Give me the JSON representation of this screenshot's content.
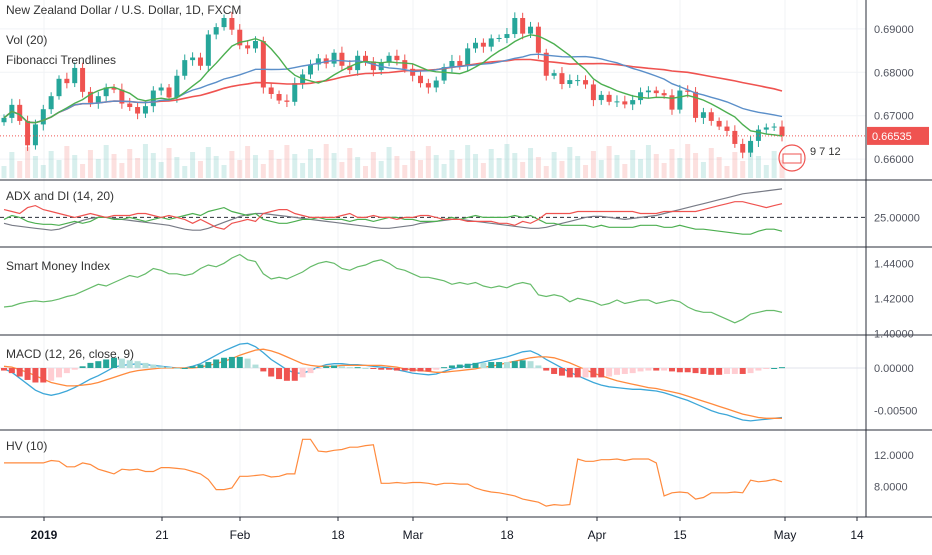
{
  "header": {
    "symbol_title": "New Zealand Dollar / U.S. Dollar, 1D, FXCM",
    "volume_label": "Vol (20)",
    "fib_label": "Fibonacci Trendlines"
  },
  "last_price_label": "0.66535",
  "event_badge_text": "9 7 12",
  "colors": {
    "up": "#26a69a",
    "down": "#ef5350",
    "ma_fast": "#4caf50",
    "ma_mid": "#5b8fc9",
    "ma_slow": "#ef5350",
    "adx": "#787b86",
    "plus_di": "#4caf50",
    "minus_di": "#ef5350",
    "smi": "#66bb6a",
    "macd": "#3da7d8",
    "signal": "#ff8a3d",
    "hv": "#ff8a3d",
    "price_line": "#ef5350"
  },
  "chart_data": [
    {
      "type": "candlestick",
      "title": "New Zealand Dollar / U.S. Dollar, 1D, FXCM",
      "ylim": [
        0.655,
        0.695
      ],
      "yticks": [
        "0.69000",
        "0.68000",
        "0.67000",
        "0.66000"
      ],
      "x_labels": [
        "2019",
        "21",
        "Feb",
        "18",
        "Mar",
        "18",
        "Apr",
        "15",
        "May",
        "14"
      ],
      "close": [
        0.6695,
        0.6725,
        0.6688,
        0.6632,
        0.668,
        0.6715,
        0.6745,
        0.6785,
        0.6775,
        0.681,
        0.6755,
        0.673,
        0.6745,
        0.6765,
        0.676,
        0.6728,
        0.672,
        0.6705,
        0.6722,
        0.6758,
        0.6765,
        0.6742,
        0.6792,
        0.6828,
        0.6834,
        0.6815,
        0.6887,
        0.6904,
        0.6925,
        0.6898,
        0.6862,
        0.6855,
        0.6872,
        0.6765,
        0.675,
        0.6735,
        0.6732,
        0.6775,
        0.6795,
        0.6818,
        0.6832,
        0.682,
        0.6845,
        0.6815,
        0.6805,
        0.6838,
        0.6825,
        0.6805,
        0.6822,
        0.6838,
        0.6828,
        0.6808,
        0.6792,
        0.6775,
        0.6765,
        0.6781,
        0.6812,
        0.6826,
        0.6815,
        0.6855,
        0.6868,
        0.6859,
        0.6878,
        0.6879,
        0.6888,
        0.6925,
        0.6889,
        0.6905,
        0.6845,
        0.6792,
        0.6798,
        0.6773,
        0.6782,
        0.6782,
        0.6772,
        0.6736,
        0.6748,
        0.6732,
        0.6733,
        0.6726,
        0.6736,
        0.6754,
        0.6758,
        0.6752,
        0.6747,
        0.6714,
        0.6758,
        0.6755,
        0.6695,
        0.6708,
        0.6688,
        0.6675,
        0.6665,
        0.6635,
        0.6615,
        0.6642,
        0.6668,
        0.6673,
        0.6675,
        0.6653
      ],
      "volume_present": true,
      "moving_averages": [
        "MA fast (green)",
        "MA mid (blue)",
        "MA slow (red)"
      ]
    },
    {
      "type": "line",
      "title": "ADX and DI (14, 20)",
      "yticks": [
        "25.00000"
      ],
      "reference_level": 25,
      "series": [
        {
          "name": "ADX",
          "values": [
            22,
            21,
            20.5,
            20,
            19.5,
            19,
            18.5,
            19,
            20.5,
            22,
            23.5,
            24.5,
            25,
            25,
            24.5,
            24,
            23.5,
            23,
            22.5,
            22,
            21.5,
            21,
            20,
            19,
            18.5,
            18.5,
            19.5,
            21,
            22.5,
            24,
            25.5,
            26.5,
            27,
            27,
            26.5,
            26,
            25.5,
            25,
            24.5,
            24,
            23.5,
            23,
            22.5,
            22,
            21.5,
            21,
            20.5,
            20,
            19.5,
            19.5,
            20,
            20.5,
            21,
            22,
            22.5,
            23,
            23.5,
            24,
            24,
            23.5,
            23,
            22.5,
            22,
            21.5,
            21,
            20.5,
            20,
            19.5,
            19.5,
            20,
            21,
            22,
            23,
            24,
            25,
            25.5,
            25.5,
            25,
            24.5,
            24,
            24.5,
            25,
            25.5,
            26,
            27,
            28,
            29,
            30,
            31,
            32,
            33,
            34,
            35,
            36,
            37,
            37.5,
            38,
            38.5,
            39,
            39.5
          ]
        },
        {
          "name": "+DI",
          "values": [
            24,
            26,
            25,
            23,
            22,
            21.5,
            21.5,
            21,
            22,
            23,
            22,
            23,
            25,
            25,
            24,
            24,
            25,
            24,
            23,
            24,
            25,
            24,
            25,
            26,
            27,
            26,
            28,
            29,
            30,
            28,
            27,
            26,
            27,
            24,
            23,
            22,
            22,
            23,
            24,
            24,
            25,
            24,
            24,
            24,
            23,
            24,
            24,
            23,
            24,
            25,
            25,
            24,
            24,
            23,
            23,
            23,
            24,
            25,
            24,
            25,
            26,
            25,
            25,
            25,
            25,
            26,
            25,
            26,
            24,
            22,
            22,
            21,
            21,
            21,
            21,
            20,
            21,
            20,
            20,
            20,
            20,
            21,
            21,
            21,
            20,
            20,
            21,
            20,
            19,
            19,
            18.5,
            18,
            17.5,
            17,
            16.5,
            16.5,
            18,
            19,
            19,
            18
          ]
        },
        {
          "name": "-DI",
          "values": [
            29,
            28,
            27,
            30,
            31,
            29,
            28,
            27,
            26,
            25,
            26,
            27,
            26,
            25,
            26,
            26,
            26,
            27,
            27,
            26,
            25,
            26,
            25,
            24,
            22,
            24,
            22,
            20,
            19,
            22,
            23,
            24,
            23,
            27,
            28,
            29,
            29,
            27,
            26,
            25,
            25,
            25,
            25,
            26,
            27,
            25,
            25,
            26,
            25,
            25,
            24,
            25,
            25,
            26,
            26,
            25,
            24,
            24,
            24,
            23,
            23,
            23,
            23,
            22,
            22,
            21,
            23,
            22,
            24,
            27,
            27,
            27,
            27,
            28,
            28,
            28,
            28,
            28,
            28,
            28,
            28,
            27,
            27,
            27,
            28,
            28,
            28,
            28,
            28,
            29,
            30,
            31,
            32,
            33,
            33,
            32,
            31,
            30,
            31,
            32
          ]
        }
      ]
    },
    {
      "type": "line",
      "title": "Smart Money Index",
      "yticks": [
        "1.44000",
        "1.42000",
        "1.40000"
      ],
      "series": [
        {
          "name": "Smart Money Index",
          "values": [
            1.415,
            1.4155,
            1.417,
            1.418,
            1.4185,
            1.418,
            1.4185,
            1.4195,
            1.421,
            1.422,
            1.424,
            1.426,
            1.428,
            1.427,
            1.429,
            1.431,
            1.433,
            1.432,
            1.434,
            1.437,
            1.436,
            1.434,
            1.434,
            1.433,
            1.434,
            1.437,
            1.439,
            1.438,
            1.44,
            1.443,
            1.445,
            1.442,
            1.441,
            1.434,
            1.431,
            1.432,
            1.431,
            1.433,
            1.435,
            1.438,
            1.44,
            1.441,
            1.44,
            1.437,
            1.436,
            1.438,
            1.439,
            1.441,
            1.442,
            1.44,
            1.437,
            1.436,
            1.434,
            1.432,
            1.432,
            1.431,
            1.43,
            1.428,
            1.429,
            1.428,
            1.429,
            1.427,
            1.426,
            1.427,
            1.426,
            1.428,
            1.429,
            1.428,
            1.422,
            1.421,
            1.422,
            1.421,
            1.418,
            1.42,
            1.419,
            1.418,
            1.416,
            1.417,
            1.419,
            1.417,
            1.418,
            1.419,
            1.419,
            1.417,
            1.418,
            1.419,
            1.418,
            1.415,
            1.413,
            1.412,
            1.412,
            1.41,
            1.408,
            1.406,
            1.408,
            1.411,
            1.412,
            1.413,
            1.413,
            1.412
          ]
        }
      ]
    },
    {
      "type": "bar",
      "title": "MACD (12, 26, close, 9)",
      "yticks": [
        "0.00000",
        "-0.00500"
      ],
      "series": [
        {
          "name": "MACD",
          "values": [
            -0.0001,
            -0.0005,
            -0.0012,
            -0.0019,
            -0.0026,
            -0.003,
            -0.0032,
            -0.003,
            -0.0027,
            -0.0023,
            -0.0018,
            -0.0013,
            -0.0009,
            -0.0004,
            0.0001,
            0.0003,
            0.0004,
            0.0005,
            0.0004,
            0.0003,
            0.0002,
            0.0001,
            0.0,
            0.0,
            0.0002,
            0.0005,
            0.001,
            0.0015,
            0.002,
            0.0024,
            0.0028,
            0.0029,
            0.0025,
            0.0018,
            0.001,
            0.0004,
            -0.0002,
            -0.0006,
            -0.0006,
            -0.0003,
            0.0001,
            0.0004,
            0.0005,
            0.0005,
            0.0004,
            0.0004,
            0.0003,
            0.0002,
            0.0001,
            0.0,
            -0.0002,
            -0.0004,
            -0.0006,
            -0.0007,
            -0.0008,
            -0.0007,
            -0.0004,
            -0.0001,
            0.0001,
            0.0003,
            0.0005,
            0.0007,
            0.0009,
            0.0011,
            0.0013,
            0.0016,
            0.0019,
            0.002,
            0.0016,
            0.001,
            0.0005,
            0.0,
            -0.0005,
            -0.0009,
            -0.0013,
            -0.0017,
            -0.002,
            -0.0022,
            -0.0023,
            -0.0024,
            -0.0025,
            -0.0025,
            -0.0026,
            -0.0027,
            -0.0029,
            -0.0032,
            -0.0035,
            -0.0038,
            -0.0042,
            -0.0046,
            -0.005,
            -0.0053,
            -0.0055,
            -0.0058,
            -0.0061,
            -0.0062,
            -0.0061,
            -0.006,
            -0.0059,
            -0.0058
          ]
        },
        {
          "name": "Signal",
          "values": [
            0.0002,
            0.0001,
            -0.0002,
            -0.0005,
            -0.0009,
            -0.0013,
            -0.0017,
            -0.0019,
            -0.0021,
            -0.0021,
            -0.002,
            -0.0019,
            -0.0017,
            -0.0014,
            -0.0011,
            -0.0008,
            -0.0005,
            -0.0003,
            -0.0002,
            -0.0001,
            0.0,
            0.0,
            0.0,
            0.0,
            0.0,
            0.0001,
            0.0003,
            0.0005,
            0.0008,
            0.0011,
            0.0015,
            0.0018,
            0.0021,
            0.0022,
            0.002,
            0.0017,
            0.0013,
            0.0009,
            0.0005,
            0.0003,
            0.0002,
            0.0002,
            0.0002,
            0.0003,
            0.0003,
            0.0003,
            0.0003,
            0.0003,
            0.0003,
            0.0002,
            0.0001,
            -0.0001,
            -0.0002,
            -0.0003,
            -0.0004,
            -0.0005,
            -0.0005,
            -0.0004,
            -0.0003,
            -0.0002,
            -0.0001,
            0.0001,
            0.0002,
            0.0004,
            0.0006,
            0.0008,
            0.001,
            0.0012,
            0.0013,
            0.0013,
            0.0012,
            0.0009,
            0.0006,
            0.0002,
            -0.0002,
            -0.0006,
            -0.0009,
            -0.0012,
            -0.0015,
            -0.0017,
            -0.0019,
            -0.0021,
            -0.0023,
            -0.0024,
            -0.0026,
            -0.0028,
            -0.003,
            -0.0033,
            -0.0036,
            -0.0039,
            -0.0042,
            -0.0045,
            -0.0048,
            -0.0051,
            -0.0054,
            -0.0056,
            -0.0058,
            -0.0059,
            -0.0059,
            -0.0059
          ]
        }
      ]
    },
    {
      "type": "line",
      "title": "HV (10)",
      "yticks": [
        "12.0000",
        "8.0000"
      ],
      "series": [
        {
          "name": "HV",
          "values": [
            11,
            11,
            11,
            11,
            11,
            11,
            11.3,
            11.2,
            10.5,
            10.5,
            11,
            10.8,
            10.2,
            9.9,
            9.6,
            10.2,
            10.1,
            10.2,
            9.9,
            9.9,
            10.4,
            10.4,
            10.3,
            10.2,
            9.9,
            9.6,
            8.9,
            7.6,
            7.6,
            7.8,
            9.3,
            9.3,
            9.4,
            9.5,
            9.2,
            9.3,
            9.6,
            9.6,
            14,
            14,
            12.5,
            12.4,
            12.6,
            12.7,
            13,
            13,
            13.2,
            13.3,
            8.4,
            8.4,
            8.5,
            8.4,
            8.5,
            8.5,
            8.4,
            8.2,
            8.4,
            8.4,
            8.3,
            8.3,
            7.8,
            7.5,
            7.3,
            7.2,
            7.0,
            6.8,
            6.4,
            6.2,
            6.0,
            5.5,
            5.7,
            5.6,
            5.7,
            11.5,
            11.2,
            11.2,
            11.4,
            11.4,
            11.5,
            11.3,
            11.5,
            11.5,
            11.5,
            11,
            6.8,
            7.2,
            7.3,
            7.2,
            6.4,
            6.6,
            7.2,
            7.2,
            7.2,
            7.3,
            7.2,
            8.8,
            8.6,
            8.7,
            8.9,
            8.6
          ]
        }
      ]
    }
  ]
}
